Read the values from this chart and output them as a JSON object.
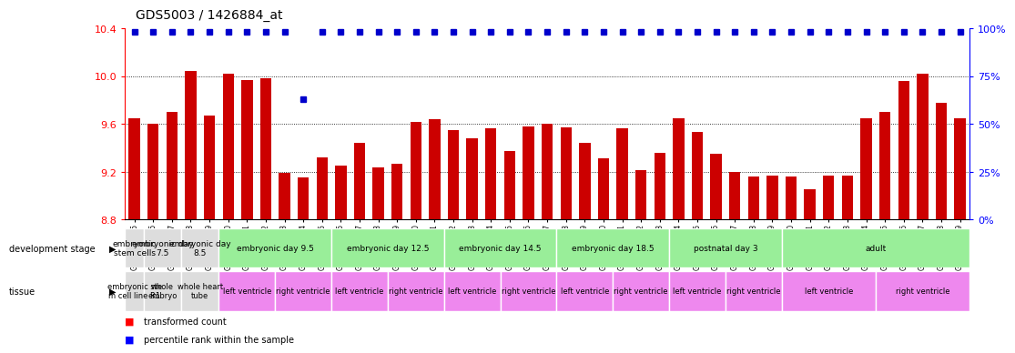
{
  "title": "GDS5003 / 1426884_at",
  "sample_ids": [
    "GSM1246305",
    "GSM1246306",
    "GSM1246307",
    "GSM1246308",
    "GSM1246309",
    "GSM1246310",
    "GSM1246311",
    "GSM1246312",
    "GSM1246313",
    "GSM1246314",
    "GSM1246315",
    "GSM1246316",
    "GSM1246317",
    "GSM1246318",
    "GSM1246319",
    "GSM1246320",
    "GSM1246321",
    "GSM1246322",
    "GSM1246323",
    "GSM1246324",
    "GSM1246325",
    "GSM1246326",
    "GSM1246327",
    "GSM1246328",
    "GSM1246329",
    "GSM1246330",
    "GSM1246331",
    "GSM1246332",
    "GSM1246333",
    "GSM1246334",
    "GSM1246335",
    "GSM1246336",
    "GSM1246337",
    "GSM1246338",
    "GSM1246339",
    "GSM1246340",
    "GSM1246341",
    "GSM1246342",
    "GSM1246343",
    "GSM1246344",
    "GSM1246345",
    "GSM1246346",
    "GSM1246347",
    "GSM1246348",
    "GSM1246349"
  ],
  "bar_values": [
    9.65,
    9.6,
    9.7,
    10.04,
    9.67,
    10.02,
    9.97,
    9.98,
    9.19,
    9.15,
    9.32,
    9.25,
    9.44,
    9.24,
    9.27,
    9.62,
    9.64,
    9.55,
    9.48,
    9.56,
    9.37,
    9.58,
    9.6,
    9.57,
    9.44,
    9.31,
    9.56,
    9.21,
    9.36,
    9.65,
    9.53,
    9.35,
    9.2,
    9.16,
    9.17,
    9.16,
    9.05,
    9.17,
    9.17,
    9.65,
    9.7,
    9.96,
    10.02,
    9.78,
    9.65
  ],
  "percentile_values": [
    98,
    98,
    98,
    98,
    98,
    98,
    98,
    98,
    98,
    63,
    98,
    98,
    98,
    98,
    98,
    98,
    98,
    98,
    98,
    98,
    98,
    98,
    98,
    98,
    98,
    98,
    98,
    98,
    98,
    98,
    98,
    98,
    98,
    98,
    98,
    98,
    98,
    98,
    98,
    98,
    98,
    98,
    98,
    98,
    98
  ],
  "ylim_left": [
    8.8,
    10.4
  ],
  "ylim_right": [
    0,
    100
  ],
  "yticks_left": [
    8.8,
    9.2,
    9.6,
    10.0,
    10.4
  ],
  "yticks_right": [
    0,
    25,
    50,
    75,
    100
  ],
  "bar_color": "#cc0000",
  "dot_color": "#0000cc",
  "background_color": "#ffffff",
  "development_stages": [
    {
      "label": "embryonic\nstem cells",
      "start": 0,
      "end": 1,
      "color": "#dddddd"
    },
    {
      "label": "embryonic day\n7.5",
      "start": 1,
      "end": 3,
      "color": "#dddddd"
    },
    {
      "label": "embryonic day\n8.5",
      "start": 3,
      "end": 5,
      "color": "#dddddd"
    },
    {
      "label": "embryonic day 9.5",
      "start": 5,
      "end": 11,
      "color": "#99ee99"
    },
    {
      "label": "embryonic day 12.5",
      "start": 11,
      "end": 17,
      "color": "#99ee99"
    },
    {
      "label": "embryonic day 14.5",
      "start": 17,
      "end": 23,
      "color": "#99ee99"
    },
    {
      "label": "embryonic day 18.5",
      "start": 23,
      "end": 29,
      "color": "#99ee99"
    },
    {
      "label": "postnatal day 3",
      "start": 29,
      "end": 35,
      "color": "#99ee99"
    },
    {
      "label": "adult",
      "start": 35,
      "end": 45,
      "color": "#99ee99"
    }
  ],
  "tissues": [
    {
      "label": "embryonic ste\nm cell line R1",
      "start": 0,
      "end": 1,
      "color": "#dddddd"
    },
    {
      "label": "whole\nembryo",
      "start": 1,
      "end": 3,
      "color": "#dddddd"
    },
    {
      "label": "whole heart\ntube",
      "start": 3,
      "end": 5,
      "color": "#dddddd"
    },
    {
      "label": "left ventricle",
      "start": 5,
      "end": 8,
      "color": "#ee88ee"
    },
    {
      "label": "right ventricle",
      "start": 8,
      "end": 11,
      "color": "#ee88ee"
    },
    {
      "label": "left ventricle",
      "start": 11,
      "end": 14,
      "color": "#ee88ee"
    },
    {
      "label": "right ventricle",
      "start": 14,
      "end": 17,
      "color": "#ee88ee"
    },
    {
      "label": "left ventricle",
      "start": 17,
      "end": 20,
      "color": "#ee88ee"
    },
    {
      "label": "right ventricle",
      "start": 20,
      "end": 23,
      "color": "#ee88ee"
    },
    {
      "label": "left ventricle",
      "start": 23,
      "end": 26,
      "color": "#ee88ee"
    },
    {
      "label": "right ventricle",
      "start": 26,
      "end": 29,
      "color": "#ee88ee"
    },
    {
      "label": "left ventricle",
      "start": 29,
      "end": 32,
      "color": "#ee88ee"
    },
    {
      "label": "right ventricle",
      "start": 32,
      "end": 35,
      "color": "#ee88ee"
    },
    {
      "label": "left ventricle",
      "start": 35,
      "end": 40,
      "color": "#ee88ee"
    },
    {
      "label": "right ventricle",
      "start": 40,
      "end": 45,
      "color": "#ee88ee"
    }
  ]
}
